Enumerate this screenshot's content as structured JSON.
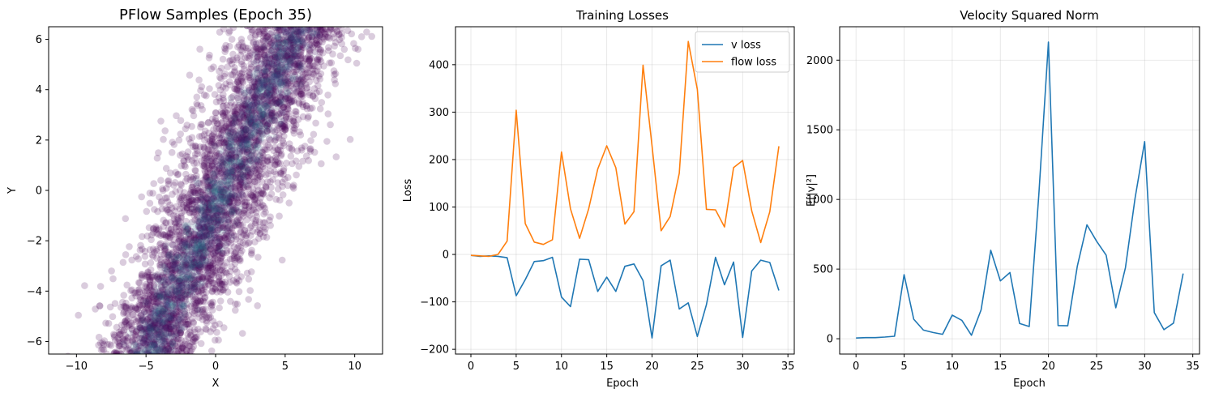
{
  "figure": {
    "width": 1488,
    "height": 490
  },
  "chart_data": [
    {
      "type": "scatter",
      "title": "PFlow Samples (Epoch 35)",
      "xlabel": "X",
      "ylabel": "Y",
      "xlim": [
        -12,
        12
      ],
      "ylim": [
        -6.5,
        6.5
      ],
      "xticks": [
        -10,
        -5,
        0,
        5,
        10
      ],
      "yticks": [
        -6,
        -4,
        -2,
        0,
        2,
        4,
        6
      ],
      "grid": false,
      "point_color": "#440154",
      "dense_colors": [
        "#3b528b",
        "#2c728e",
        "#21918c"
      ],
      "description_points": "roughly 5000 samples distributed along a diagonal band from (-5,-6) to (6,6), densest along the center line"
    },
    {
      "type": "line",
      "title": "Training Losses",
      "xlabel": "Epoch",
      "ylabel": "Loss",
      "xlim": [
        -1.7,
        35.7
      ],
      "ylim": [
        -210,
        480
      ],
      "xticks": [
        0,
        5,
        10,
        15,
        20,
        25,
        30,
        35
      ],
      "yticks": [
        -200,
        -100,
        0,
        100,
        200,
        300,
        400
      ],
      "grid": true,
      "legend_position": "top-right",
      "x": [
        0,
        1,
        2,
        3,
        4,
        5,
        6,
        7,
        8,
        9,
        10,
        11,
        12,
        13,
        14,
        15,
        16,
        17,
        18,
        19,
        20,
        21,
        22,
        23,
        24,
        25,
        26,
        27,
        28,
        29,
        30,
        31,
        32,
        33,
        34
      ],
      "series": [
        {
          "name": "v loss",
          "color": "#1f77b4",
          "values": [
            -2,
            -4,
            -3,
            -4,
            -7,
            -87,
            -53,
            -15,
            -13,
            -6,
            -90,
            -110,
            -10,
            -11,
            -78,
            -48,
            -78,
            -25,
            -20,
            -55,
            -176,
            -24,
            -12,
            -115,
            -102,
            -173,
            -106,
            -6,
            -64,
            -16,
            -175,
            -35,
            -12,
            -17,
            -76
          ]
        },
        {
          "name": "flow loss",
          "color": "#ff7f0e",
          "values": [
            -2,
            -3,
            -4,
            0,
            28,
            304,
            65,
            26,
            21,
            31,
            216,
            96,
            34,
            96,
            180,
            229,
            183,
            64,
            90,
            399,
            229,
            50,
            80,
            171,
            449,
            348,
            95,
            94,
            58,
            183,
            198,
            92,
            25,
            90,
            228
          ]
        }
      ]
    },
    {
      "type": "line",
      "title": "Velocity Squared Norm",
      "xlabel": "Epoch",
      "ylabel": "E[|v|²]",
      "xlim": [
        -1.7,
        35.7
      ],
      "ylim": [
        -110,
        2240
      ],
      "xticks": [
        0,
        5,
        10,
        15,
        20,
        25,
        30,
        35
      ],
      "yticks": [
        0,
        500,
        1000,
        1500,
        2000
      ],
      "grid": true,
      "x": [
        0,
        1,
        2,
        3,
        4,
        5,
        6,
        7,
        8,
        9,
        10,
        11,
        12,
        13,
        14,
        15,
        16,
        17,
        18,
        19,
        20,
        21,
        22,
        23,
        24,
        25,
        26,
        27,
        28,
        29,
        30,
        31,
        32,
        33,
        34
      ],
      "series": [
        {
          "name": "E[|v|^2]",
          "color": "#1f77b4",
          "values": [
            5,
            8,
            8,
            12,
            18,
            460,
            140,
            62,
            45,
            32,
            170,
            132,
            25,
            207,
            635,
            415,
            475,
            110,
            88,
            1030,
            2130,
            95,
            93,
            520,
            818,
            700,
            600,
            222,
            510,
            1010,
            1415,
            188,
            65,
            112,
            468
          ]
        }
      ]
    }
  ]
}
